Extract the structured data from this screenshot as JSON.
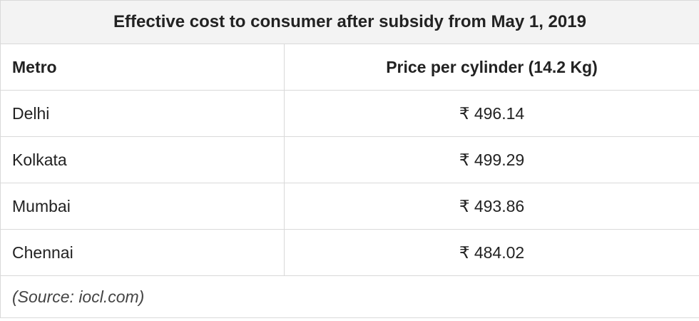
{
  "table": {
    "title": "Effective cost to consumer after subsidy from May 1, 2019",
    "columns": [
      "Metro",
      "Price per cylinder (14.2 Kg)"
    ],
    "rows": [
      [
        "Delhi",
        "₹ 496.14"
      ],
      [
        "Kolkata",
        "₹ 499.29"
      ],
      [
        "Mumbai",
        "₹ 493.86"
      ],
      [
        "Chennai",
        "₹ 484.02"
      ]
    ],
    "source": "(Source: iocl.com)"
  }
}
